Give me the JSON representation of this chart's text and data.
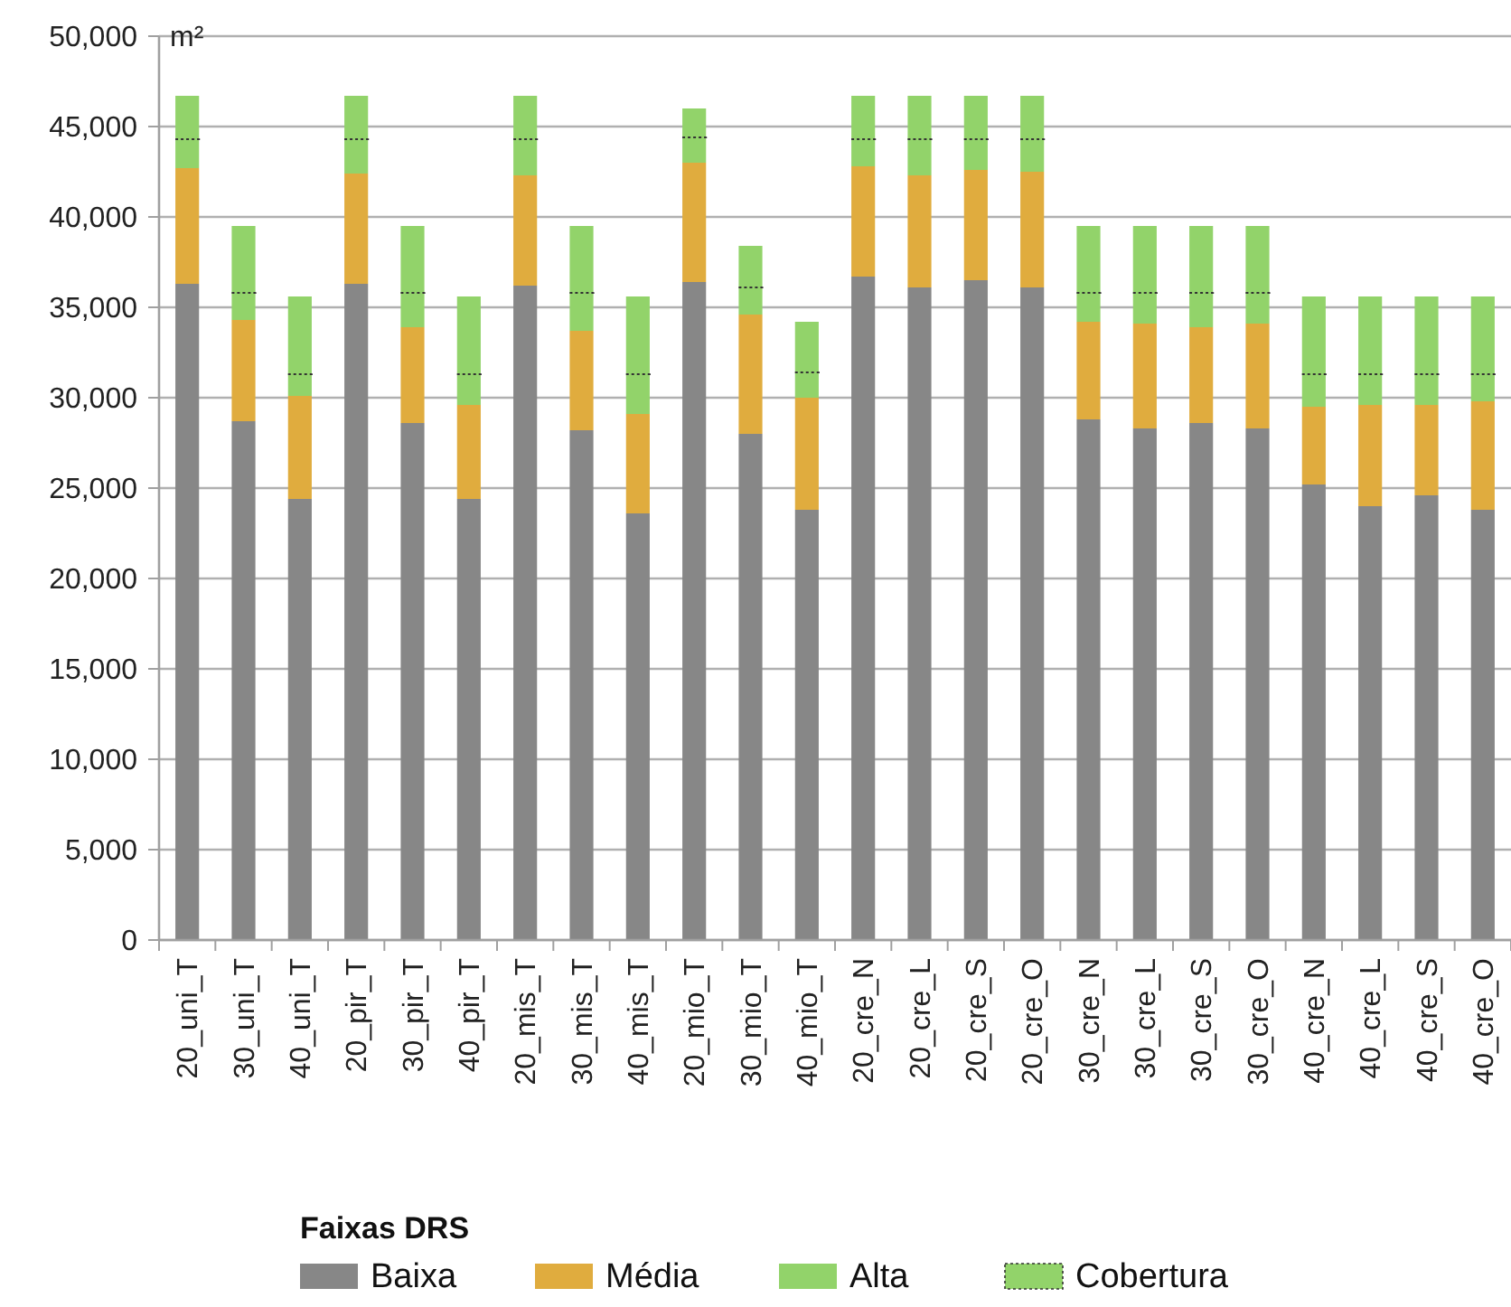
{
  "chart_data": {
    "type": "bar",
    "stacked": true,
    "ylabel": "m²",
    "legend_title": "Faixas DRS",
    "legend": "bottom",
    "grid": "y",
    "categories": [
      "20_uni_T",
      "30_uni_T",
      "40_uni_T",
      "20_pir_T",
      "30_pir_T",
      "40_pir_T",
      "20_mis_T",
      "30_mis_T",
      "40_mis_T",
      "20_mio_T",
      "30_mio_T",
      "40_mio_T",
      "20_cre_N",
      "20_cre_L",
      "20_cre_S",
      "20_cre_O",
      "30_cre_N",
      "30_cre_L",
      "30_cre_S",
      "30_cre_O",
      "40_cre_N",
      "40_cre_L",
      "40_cre_S",
      "40_cre_O"
    ],
    "series": [
      {
        "name": "Baixa",
        "color": "#878787",
        "values": [
          36300,
          28700,
          24400,
          36300,
          28600,
          24400,
          36200,
          28200,
          23600,
          36400,
          28000,
          23800,
          36700,
          36100,
          36500,
          36100,
          28800,
          28300,
          28600,
          28300,
          25200,
          24000,
          24600,
          23800
        ]
      },
      {
        "name": "Média",
        "color": "#e0ac3e",
        "values": [
          6400,
          5600,
          5700,
          6100,
          5300,
          5200,
          6100,
          5500,
          5500,
          6600,
          6600,
          6200,
          6100,
          6200,
          6100,
          6400,
          5400,
          5800,
          5300,
          5800,
          4300,
          5600,
          5000,
          6000
        ]
      },
      {
        "name": "Alta",
        "color": "#92d36a",
        "values": [
          1600,
          1500,
          1200,
          1900,
          1900,
          1700,
          2000,
          2100,
          2200,
          1400,
          1500,
          1400,
          1500,
          2000,
          1700,
          1800,
          1600,
          1700,
          1900,
          1700,
          1800,
          1700,
          1700,
          1500
        ]
      },
      {
        "name": "Cobertura",
        "color": "#92d36a",
        "line_style": "dotted",
        "values": [
          2400,
          3700,
          4300,
          2400,
          3700,
          4300,
          2400,
          3700,
          4300,
          1600,
          2300,
          2800,
          2400,
          2400,
          2400,
          2400,
          3700,
          3700,
          3700,
          3700,
          4300,
          4300,
          4300,
          4300
        ]
      }
    ],
    "ylim": [
      0,
      50000
    ],
    "yticks": [
      {
        "value": 0,
        "label": "0"
      },
      {
        "value": 5000,
        "label": "5,000"
      },
      {
        "value": 10000,
        "label": "10,000"
      },
      {
        "value": 15000,
        "label": "15,000"
      },
      {
        "value": 20000,
        "label": "20,000"
      },
      {
        "value": 25000,
        "label": "25,000"
      },
      {
        "value": 30000,
        "label": "30,000"
      },
      {
        "value": 35000,
        "label": "35,000"
      },
      {
        "value": 40000,
        "label": "40,000"
      },
      {
        "value": 45000,
        "label": "45,000"
      },
      {
        "value": 50000,
        "label": "50,000"
      }
    ]
  }
}
